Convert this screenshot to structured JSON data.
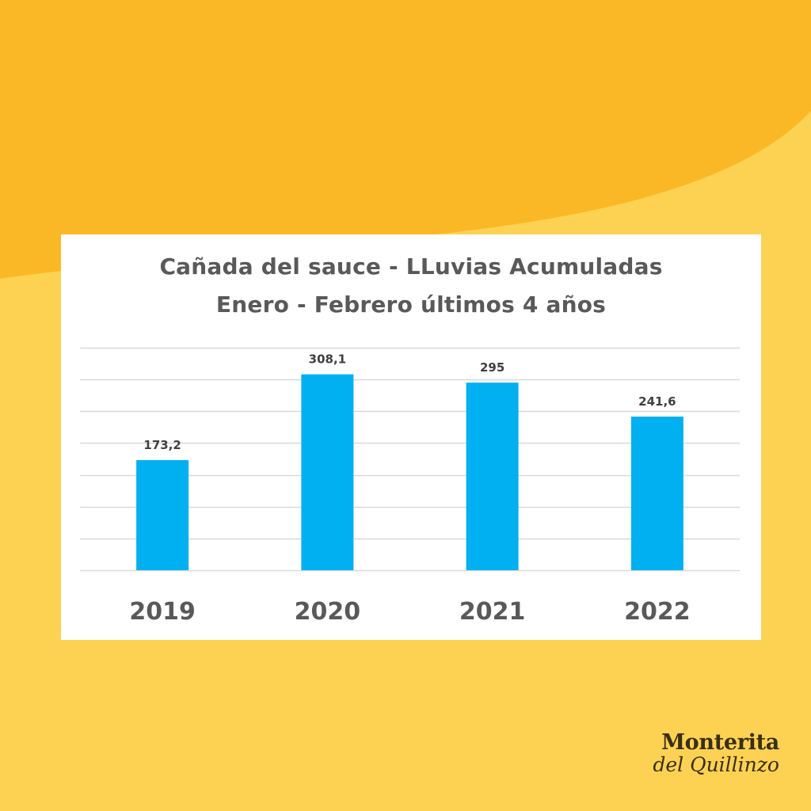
{
  "background": {
    "base_color": "#FDD253",
    "accent_color": "#FBB826"
  },
  "chart_data": {
    "type": "bar",
    "title_lines": [
      "Cañada  del sauce - LLuvias  Acumuladas",
      "Enero - Febrero  últimos  4  años"
    ],
    "categories": [
      "2019",
      "2020",
      "2021",
      "2022"
    ],
    "values": [
      173.2,
      308.1,
      295,
      241.6
    ],
    "value_labels": [
      "173,2",
      "308,1",
      "295",
      "241,6"
    ],
    "ylim": [
      0,
      350
    ],
    "y_grid_step": 50,
    "grid": true,
    "bar_color": "#00B0F0",
    "xlabel": "",
    "ylabel": ""
  },
  "brand": {
    "line1": "Monterita",
    "line2": "del Quillinzo"
  }
}
